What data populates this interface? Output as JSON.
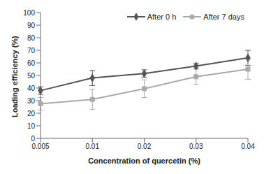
{
  "chart_data": {
    "type": "line",
    "x_label": "Concentration of quercetin (%)",
    "y_label": "Loading efficiency (%)",
    "categories": [
      "0.005",
      "0.01",
      "0.02",
      "0.03",
      "0.04"
    ],
    "ylim": [
      0,
      100
    ],
    "yticks": [
      0,
      10,
      20,
      30,
      40,
      50,
      60,
      70,
      80,
      90,
      100
    ],
    "grid": false,
    "legend": "upper right",
    "series": [
      {
        "name": "After 0 h",
        "color": "#555555",
        "marker": "diamond",
        "values": [
          38,
          48,
          51.5,
          57.5,
          64
        ],
        "errors": [
          3,
          6,
          3,
          2,
          6
        ]
      },
      {
        "name": "After 7 days",
        "color": "#aaaaaa",
        "marker": "square",
        "values": [
          27.5,
          31,
          39.5,
          49,
          55
        ],
        "errors": [
          5,
          8,
          7,
          6,
          8
        ]
      }
    ]
  }
}
